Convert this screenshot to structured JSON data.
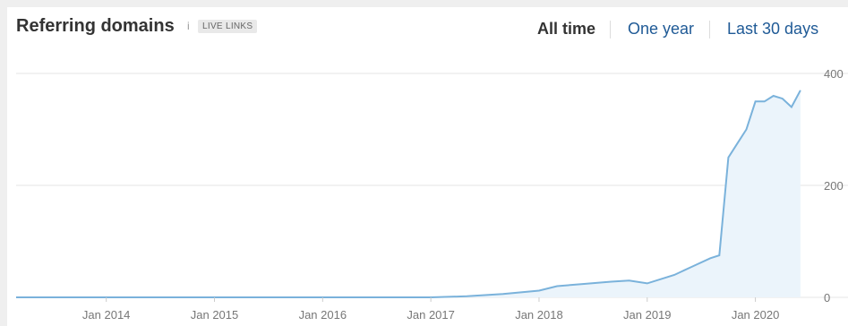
{
  "header": {
    "title": "Referring domains",
    "info_icon": "i",
    "badge": "LIVE LINKS",
    "ranges": [
      "All time",
      "One year",
      "Last 30 days"
    ],
    "active_range": "All time"
  },
  "colors": {
    "line": "#7ab2db",
    "fill": "#ebf4fb",
    "grid": "#e6e6e6",
    "link": "#1f5a96"
  },
  "chart_data": {
    "type": "area",
    "title": "",
    "xlabel": "",
    "ylabel": "",
    "x_ticks": [
      "Jan 2014",
      "Jan 2015",
      "Jan 2016",
      "Jan 2017",
      "Jan 2018",
      "Jan 2019",
      "Jan 2020"
    ],
    "y_ticks": [
      400,
      200,
      0
    ],
    "ylim": [
      0,
      400
    ],
    "xlim": [
      "2013-03",
      "2020-07"
    ],
    "grid": true,
    "series": [
      {
        "x": [
          "2013-03",
          "2014-01",
          "2015-01",
          "2016-01",
          "2017-01",
          "2017-05",
          "2017-09",
          "2018-01",
          "2018-03",
          "2018-06",
          "2018-09",
          "2018-11",
          "2019-01",
          "2019-04",
          "2019-06",
          "2019-08",
          "2019-09",
          "2019-10",
          "2019-11",
          "2019-12",
          "2020-01",
          "2020-02",
          "2020-03",
          "2020-04",
          "2020-05",
          "2020-06"
        ],
        "values": [
          0,
          0,
          0,
          0,
          0,
          2,
          6,
          12,
          20,
          24,
          28,
          30,
          25,
          40,
          55,
          70,
          75,
          250,
          275,
          300,
          350,
          350,
          360,
          355,
          340,
          370
        ]
      }
    ]
  }
}
